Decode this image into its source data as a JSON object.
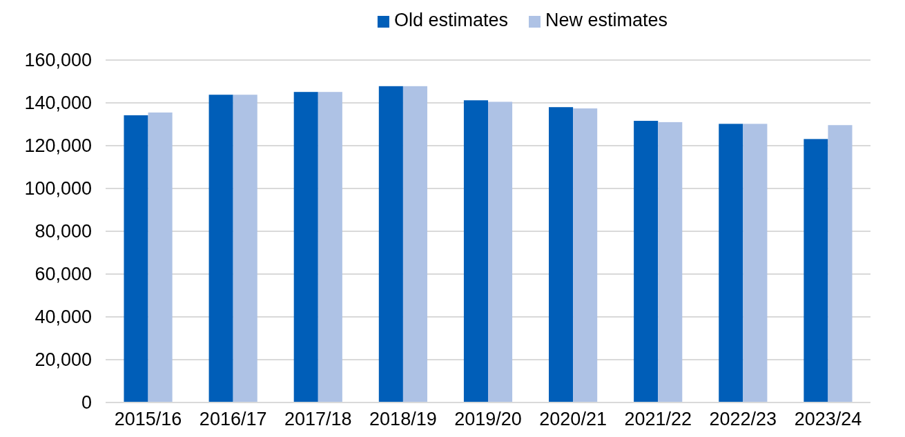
{
  "chart_data": {
    "type": "bar",
    "categories": [
      "2015/16",
      "2016/17",
      "2017/18",
      "2018/19",
      "2019/20",
      "2020/21",
      "2021/22",
      "2022/23",
      "2023/24"
    ],
    "series": [
      {
        "name": "Old estimates",
        "color": "#005eb8",
        "values": [
          134200,
          143800,
          145100,
          147800,
          141200,
          138000,
          131600,
          130200,
          123100
        ]
      },
      {
        "name": "New estimates",
        "color": "#aec2e5",
        "values": [
          135500,
          143800,
          145100,
          147800,
          140500,
          137400,
          131000,
          130200,
          129600
        ]
      }
    ],
    "ylim": [
      0,
      160000
    ],
    "yticks": [
      {
        "value": 0,
        "label": "0"
      },
      {
        "value": 20000,
        "label": "20,000"
      },
      {
        "value": 40000,
        "label": "40,000"
      },
      {
        "value": 60000,
        "label": "60,000"
      },
      {
        "value": 80000,
        "label": "80,000"
      },
      {
        "value": 100000,
        "label": "100,000"
      },
      {
        "value": 120000,
        "label": "120,000"
      },
      {
        "value": 140000,
        "label": "140,000"
      },
      {
        "value": 160000,
        "label": "160,000"
      }
    ],
    "grid": "y",
    "legend": "top"
  }
}
